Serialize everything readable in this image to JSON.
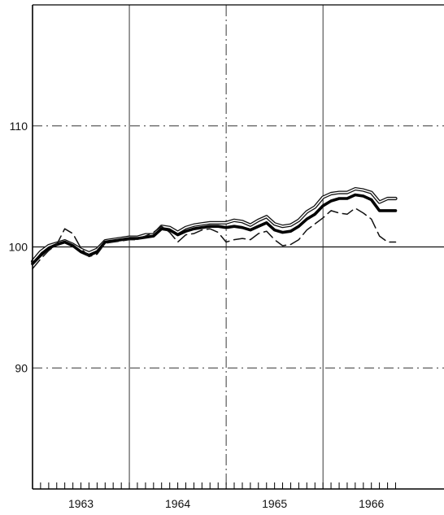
{
  "chart_data": {
    "type": "line",
    "title": "",
    "xlabel": "",
    "ylabel": "",
    "grid": true,
    "legend": "none",
    "xlim": [
      1962.5,
      1966.75
    ],
    "ylim": [
      80,
      120
    ],
    "y_ticks": [
      90,
      100,
      110
    ],
    "y_tick_labels": [
      "90",
      "100",
      "110"
    ],
    "x_tick_labels": [
      {
        "x": 1963.0,
        "label": "1963"
      },
      {
        "x": 1964.0,
        "label": "1964"
      },
      {
        "x": 1965.0,
        "label": "1965"
      },
      {
        "x": 1966.0,
        "label": "1966"
      }
    ],
    "year_separators": [
      1963.5,
      1964.5,
      1965.5
    ],
    "x": [
      1962.5,
      1962.583,
      1962.667,
      1962.75,
      1962.833,
      1962.917,
      1963.0,
      1963.083,
      1963.167,
      1963.25,
      1963.333,
      1963.417,
      1963.5,
      1963.583,
      1963.667,
      1963.75,
      1963.833,
      1963.917,
      1964.0,
      1964.083,
      1964.167,
      1964.25,
      1964.333,
      1964.417,
      1964.5,
      1964.583,
      1964.667,
      1964.75,
      1964.833,
      1964.917,
      1965.0,
      1965.083,
      1965.167,
      1965.25,
      1965.333,
      1965.417,
      1965.5,
      1965.583,
      1965.667,
      1965.75,
      1965.833,
      1965.917,
      1966.0,
      1966.083,
      1966.167,
      1966.25
    ],
    "series": [
      {
        "style": "double-thin-upper",
        "color": "#111111",
        "values": [
          98.8,
          99.6,
          100.1,
          100.3,
          100.5,
          100.2,
          99.8,
          99.5,
          99.8,
          100.5,
          100.6,
          100.7,
          100.8,
          100.8,
          101.0,
          101.0,
          101.7,
          101.6,
          101.2,
          101.6,
          101.8,
          101.9,
          102.0,
          102.0,
          102.0,
          102.2,
          102.1,
          101.8,
          102.2,
          102.5,
          101.9,
          101.7,
          101.8,
          102.2,
          102.9,
          103.3,
          104.1,
          104.4,
          104.5,
          104.5,
          104.8,
          104.7,
          104.5,
          103.7,
          104.0,
          104.0
        ]
      },
      {
        "style": "bold",
        "color": "#000000",
        "values": [
          98.6,
          99.3,
          99.9,
          100.2,
          100.4,
          100.1,
          99.6,
          99.3,
          99.6,
          100.4,
          100.5,
          100.6,
          100.7,
          100.7,
          100.8,
          100.9,
          101.5,
          101.4,
          101.0,
          101.3,
          101.5,
          101.6,
          101.7,
          101.7,
          101.6,
          101.7,
          101.6,
          101.4,
          101.7,
          102.0,
          101.4,
          101.2,
          101.3,
          101.7,
          102.3,
          102.7,
          103.4,
          103.8,
          104.0,
          104.0,
          104.3,
          104.2,
          103.9,
          103.0,
          103.0,
          103.0
        ]
      },
      {
        "style": "dashed",
        "color": "#111111",
        "values": [
          98.2,
          99.0,
          99.7,
          100.2,
          101.5,
          101.1,
          99.9,
          99.2,
          99.4,
          100.3,
          100.4,
          100.5,
          100.6,
          100.6,
          100.9,
          101.2,
          101.7,
          101.2,
          100.4,
          101.0,
          101.1,
          101.4,
          101.5,
          101.2,
          100.4,
          100.6,
          100.7,
          100.6,
          101.1,
          101.3,
          100.6,
          100.1,
          100.2,
          100.6,
          101.4,
          101.9,
          102.4,
          103.0,
          102.8,
          102.7,
          103.2,
          102.8,
          102.3,
          100.9,
          100.4,
          100.4
        ]
      }
    ]
  }
}
